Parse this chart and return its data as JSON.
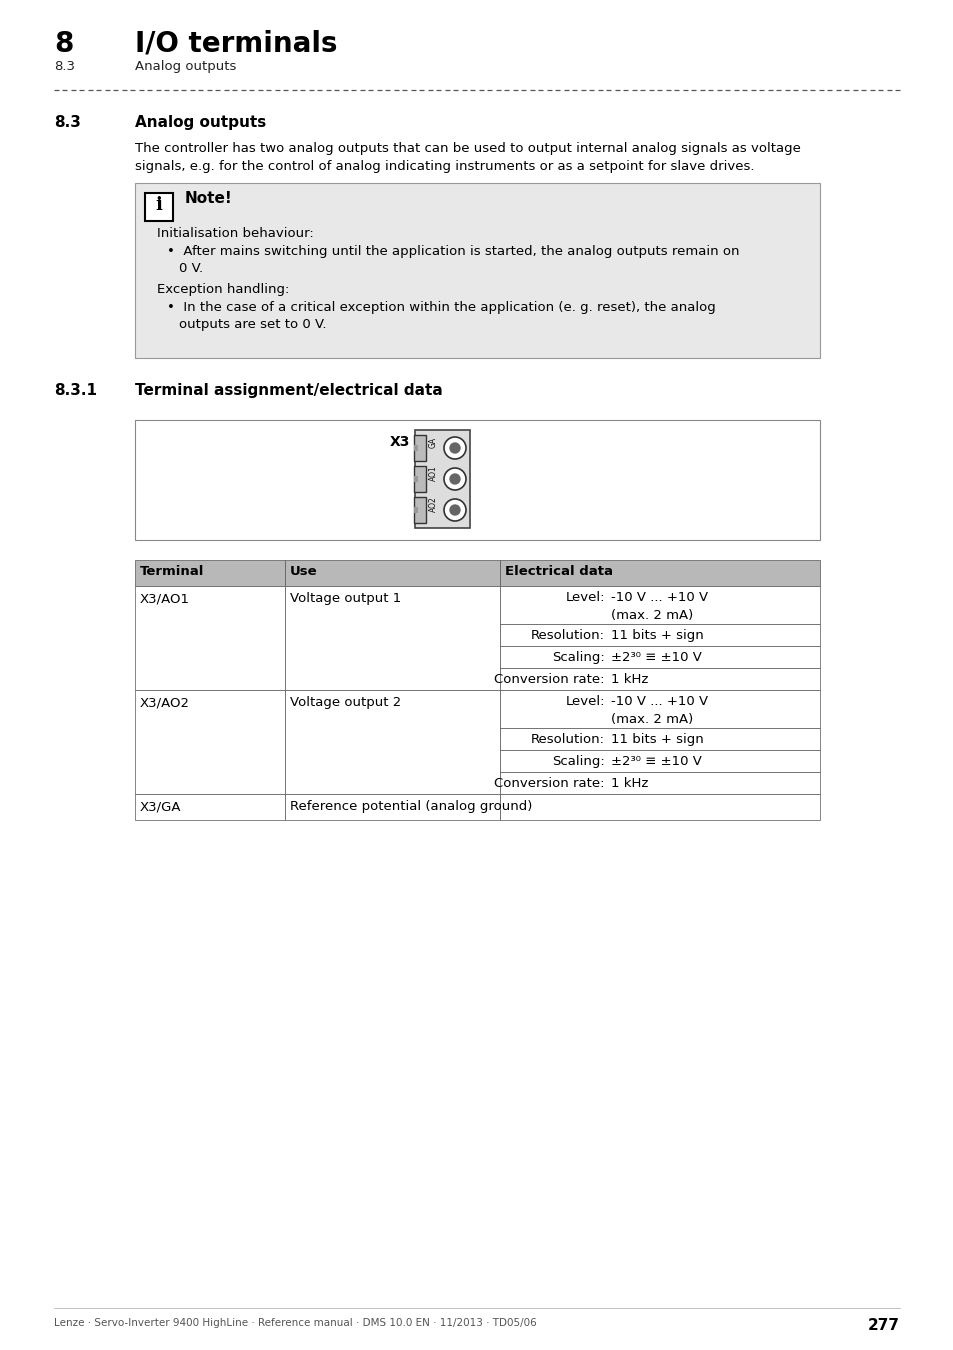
{
  "page_bg": "#ffffff",
  "header_chapter": "8",
  "header_title": "I/O terminals",
  "header_sub_num": "8.3",
  "header_sub_title": "Analog outputs",
  "section_num": "8.3",
  "section_title": "Analog outputs",
  "body_text_1": "The controller has two analog outputs that can be used to output internal analog signals as voltage",
  "body_text_2": "signals, e.g. for the control of analog indicating instruments or as a setpoint for slave drives.",
  "note_title": "Note!",
  "note_bg": "#e8e8e8",
  "subsection_num": "8.3.1",
  "subsection_title": "Terminal assignment/electrical data",
  "connector_label": "X3",
  "connector_labels": [
    "GA",
    "AO1",
    "AO2"
  ],
  "table_header_bg": "#b8b8b8",
  "table_header": [
    "Terminal",
    "Use",
    "Electrical data"
  ],
  "table_rows": [
    {
      "terminal": "X3/AO1",
      "use": "Voltage output 1",
      "sub_rows": [
        {
          "label": "Level:",
          "value": "-10 V ... +10 V\n(max. 2 mA)"
        },
        {
          "label": "Resolution:",
          "value": "11 bits + sign"
        },
        {
          "label": "Scaling:",
          "value": "±2³⁰ ≡ ±10 V"
        },
        {
          "label": "Conversion rate:",
          "value": "1 kHz"
        }
      ]
    },
    {
      "terminal": "X3/AO2",
      "use": "Voltage output 2",
      "sub_rows": [
        {
          "label": "Level:",
          "value": "-10 V ... +10 V\n(max. 2 mA)"
        },
        {
          "label": "Resolution:",
          "value": "11 bits + sign"
        },
        {
          "label": "Scaling:",
          "value": "±2³⁰ ≡ ±10 V"
        },
        {
          "label": "Conversion rate:",
          "value": "1 kHz"
        }
      ]
    },
    {
      "terminal": "X3/GA",
      "use": "Reference potential (analog ground)",
      "sub_rows": []
    }
  ],
  "footer_text": "Lenze · Servo-Inverter 9400 HighLine · Reference manual · DMS 10.0 EN · 11/2013 · TD05/06",
  "footer_page": "277"
}
